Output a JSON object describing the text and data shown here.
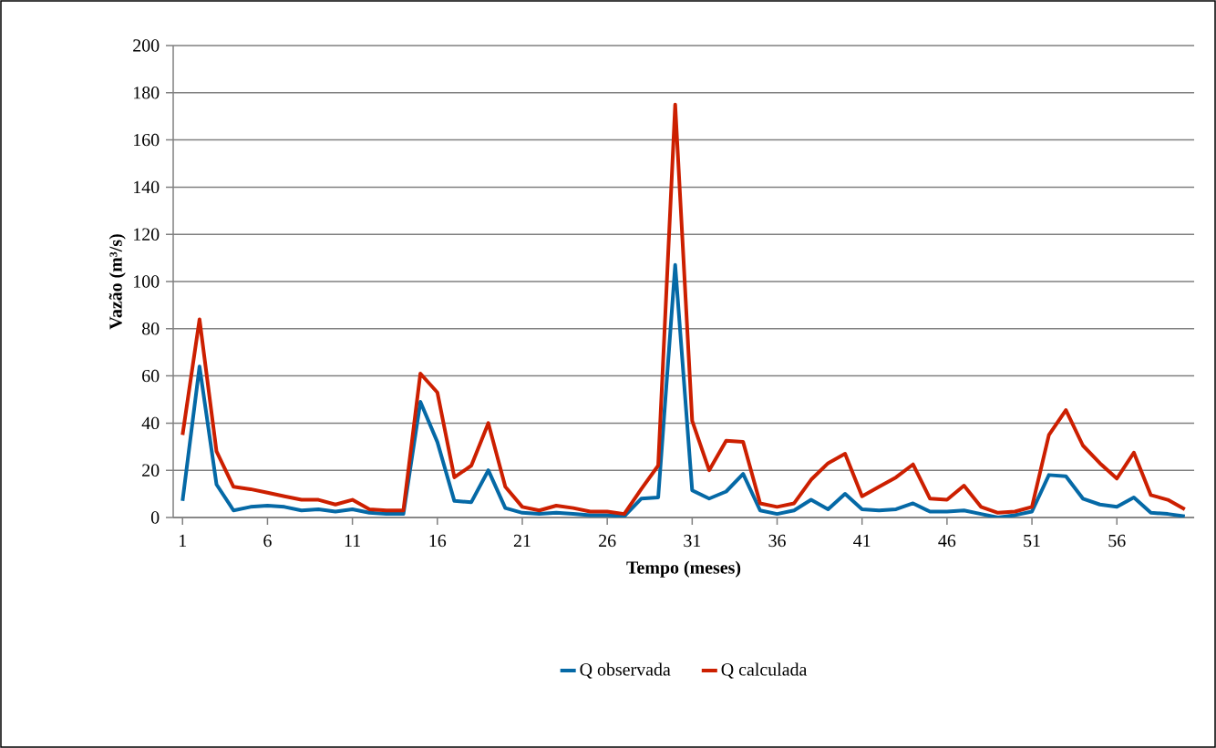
{
  "chart_data": {
    "type": "line",
    "xlabel": "Tempo (meses)",
    "ylabel": "Vazão (m³/s)",
    "categories": [
      "1",
      null,
      null,
      null,
      null,
      "6",
      null,
      null,
      null,
      null,
      "11",
      null,
      null,
      null,
      null,
      "16",
      null,
      null,
      null,
      null,
      "21",
      null,
      null,
      null,
      null,
      "26",
      null,
      null,
      null,
      null,
      "31",
      null,
      null,
      null,
      null,
      "36",
      null,
      null,
      null,
      null,
      "41",
      null,
      null,
      null,
      null,
      "46",
      null,
      null,
      null,
      null,
      "51",
      null,
      null,
      null,
      null,
      "56",
      null,
      null,
      null,
      null
    ],
    "series": [
      {
        "name": "Q observada",
        "color": "#0569a6",
        "values": [
          7,
          64,
          14,
          3,
          4.5,
          5,
          4.5,
          3,
          3.5,
          2.5,
          3.5,
          2,
          1.5,
          1.5,
          49,
          32,
          7,
          6.5,
          20,
          4,
          2,
          1.5,
          2,
          1.5,
          1,
          1,
          0.5,
          8,
          8.5,
          107,
          11.5,
          8,
          11,
          18.5,
          3,
          1.5,
          3,
          7.5,
          3.5,
          10,
          3.5,
          3,
          3.5,
          6,
          2.5,
          2.5,
          3,
          1.5,
          0,
          1,
          2.5,
          18,
          17.5,
          8,
          5.5,
          4.5,
          8.5,
          2,
          1.5,
          0.5
        ]
      },
      {
        "name": "Q calculada",
        "color": "#cc1f00",
        "values": [
          35,
          84,
          28,
          13,
          12,
          10.5,
          9,
          7.5,
          7.5,
          5.5,
          7.5,
          3.5,
          3,
          3,
          61,
          53,
          17,
          22,
          40,
          13,
          4.5,
          3,
          5,
          4,
          2.5,
          2.5,
          1.5,
          12,
          22,
          175,
          41,
          20,
          32.5,
          32,
          6,
          4.5,
          6,
          16,
          23,
          27,
          9,
          13,
          17,
          22.5,
          8,
          7.5,
          13.5,
          4.5,
          2,
          2.5,
          4.5,
          35,
          45.5,
          30.5,
          23,
          16.5,
          27.5,
          9.5,
          7.5,
          3.5
        ]
      }
    ],
    "ylim": [
      0,
      200
    ],
    "yticks": [
      0,
      20,
      40,
      60,
      80,
      100,
      120,
      140,
      160,
      180,
      200
    ],
    "grid": "y",
    "legend": "bottom",
    "marker": "none",
    "line_style": "solid"
  }
}
